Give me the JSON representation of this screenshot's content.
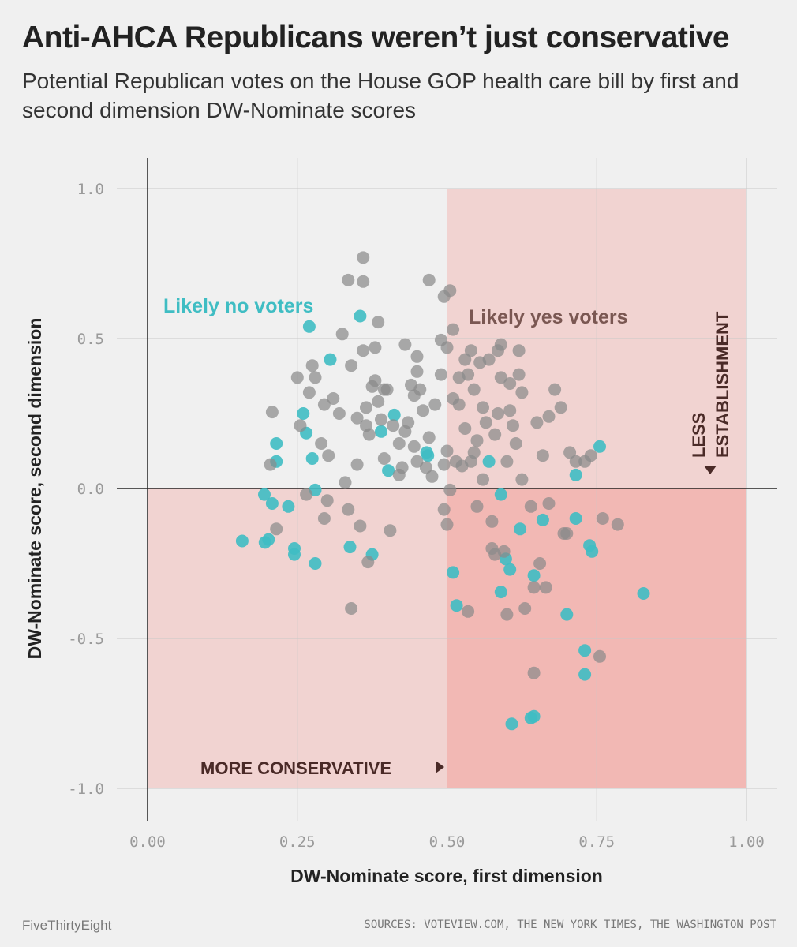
{
  "header": {
    "title": "Anti-AHCA Republicans weren’t just conservative",
    "subtitle": "Potential Republican votes on the House GOP health care bill by first and second dimension DW-Nominate scores"
  },
  "footer": {
    "brand": "FiveThirtyEight",
    "sources": "SOURCES: VOTEVIEW.COM, THE NEW YORK TIMES, THE WASHINGTON POST"
  },
  "chart_data": {
    "type": "scatter",
    "title": "Anti-AHCA Republicans weren’t just conservative",
    "xlabel": "DW-Nominate score, first dimension",
    "ylabel": "DW-Nominate score, second dimension",
    "xlim": [
      0,
      1
    ],
    "ylim": [
      -1,
      1
    ],
    "x_ticks": [
      "0.00",
      "0.25",
      "0.50",
      "0.75",
      "1.00"
    ],
    "y_ticks": [
      "1.0",
      "0.5",
      "0.0",
      "-0.5",
      "-1.0"
    ],
    "grid": true,
    "colors": {
      "no": "#3fbdc3",
      "yes": "#8a8a8a",
      "shade_light": "#f1d3d1",
      "shade_dark": "#f2b8b4",
      "annotation": "#4a2a27",
      "yes_label": "#7a5752"
    },
    "annotations": {
      "no_label": "Likely no voters",
      "yes_label": "Likely yes voters",
      "x_direction": "MORE CONSERVATIVE",
      "y_direction_line1": "LESS",
      "y_direction_line2": "ESTABLISHMENT"
    },
    "series": [
      {
        "name": "Likely no voters",
        "points": [
          [
            0.158,
            -0.175
          ],
          [
            0.195,
            -0.02
          ],
          [
            0.196,
            -0.18
          ],
          [
            0.202,
            -0.17
          ],
          [
            0.208,
            -0.05
          ],
          [
            0.215,
            0.15
          ],
          [
            0.215,
            0.09
          ],
          [
            0.235,
            -0.06
          ],
          [
            0.245,
            -0.2
          ],
          [
            0.245,
            -0.22
          ],
          [
            0.26,
            0.25
          ],
          [
            0.265,
            0.185
          ],
          [
            0.27,
            0.54
          ],
          [
            0.275,
            0.1
          ],
          [
            0.28,
            -0.25
          ],
          [
            0.28,
            -0.005
          ],
          [
            0.305,
            0.43
          ],
          [
            0.338,
            -0.195
          ],
          [
            0.355,
            0.575
          ],
          [
            0.375,
            -0.22
          ],
          [
            0.39,
            0.19
          ],
          [
            0.402,
            0.06
          ],
          [
            0.412,
            0.245
          ],
          [
            0.466,
            0.12
          ],
          [
            0.468,
            0.11
          ],
          [
            0.51,
            -0.28
          ],
          [
            0.516,
            -0.39
          ],
          [
            0.57,
            0.09
          ],
          [
            0.59,
            -0.02
          ],
          [
            0.59,
            -0.345
          ],
          [
            0.598,
            -0.235
          ],
          [
            0.605,
            -0.27
          ],
          [
            0.608,
            -0.785
          ],
          [
            0.622,
            -0.135
          ],
          [
            0.64,
            -0.765
          ],
          [
            0.645,
            -0.29
          ],
          [
            0.645,
            -0.76
          ],
          [
            0.66,
            -0.105
          ],
          [
            0.7,
            -0.42
          ],
          [
            0.715,
            0.045
          ],
          [
            0.715,
            -0.1
          ],
          [
            0.73,
            -0.62
          ],
          [
            0.73,
            -0.54
          ],
          [
            0.738,
            -0.19
          ],
          [
            0.742,
            -0.21
          ],
          [
            0.755,
            0.14
          ],
          [
            0.828,
            -0.35
          ]
        ]
      },
      {
        "name": "Likely yes voters",
        "points": [
          [
            0.205,
            0.08
          ],
          [
            0.208,
            0.255
          ],
          [
            0.215,
            -0.135
          ],
          [
            0.25,
            0.37
          ],
          [
            0.255,
            0.21
          ],
          [
            0.265,
            -0.02
          ],
          [
            0.27,
            0.32
          ],
          [
            0.275,
            0.41
          ],
          [
            0.28,
            0.37
          ],
          [
            0.29,
            0.15
          ],
          [
            0.295,
            -0.1
          ],
          [
            0.295,
            0.28
          ],
          [
            0.3,
            -0.04
          ],
          [
            0.302,
            0.11
          ],
          [
            0.31,
            0.3
          ],
          [
            0.32,
            0.25
          ],
          [
            0.325,
            0.515
          ],
          [
            0.33,
            0.02
          ],
          [
            0.335,
            0.695
          ],
          [
            0.335,
            -0.07
          ],
          [
            0.34,
            -0.4
          ],
          [
            0.34,
            0.41
          ],
          [
            0.35,
            0.08
          ],
          [
            0.35,
            0.235
          ],
          [
            0.355,
            -0.125
          ],
          [
            0.36,
            0.77
          ],
          [
            0.36,
            0.46
          ],
          [
            0.36,
            0.69
          ],
          [
            0.365,
            0.21
          ],
          [
            0.365,
            0.27
          ],
          [
            0.368,
            -0.245
          ],
          [
            0.37,
            0.18
          ],
          [
            0.375,
            0.34
          ],
          [
            0.38,
            0.47
          ],
          [
            0.38,
            0.36
          ],
          [
            0.385,
            0.555
          ],
          [
            0.385,
            0.29
          ],
          [
            0.39,
            0.23
          ],
          [
            0.395,
            0.1
          ],
          [
            0.395,
            0.33
          ],
          [
            0.4,
            0.33
          ],
          [
            0.405,
            -0.14
          ],
          [
            0.41,
            0.21
          ],
          [
            0.42,
            0.045
          ],
          [
            0.42,
            0.15
          ],
          [
            0.425,
            0.07
          ],
          [
            0.43,
            0.19
          ],
          [
            0.43,
            0.48
          ],
          [
            0.435,
            0.22
          ],
          [
            0.44,
            0.345
          ],
          [
            0.445,
            0.14
          ],
          [
            0.445,
            0.31
          ],
          [
            0.45,
            0.44
          ],
          [
            0.45,
            0.39
          ],
          [
            0.45,
            0.09
          ],
          [
            0.455,
            0.33
          ],
          [
            0.46,
            0.26
          ],
          [
            0.465,
            0.07
          ],
          [
            0.47,
            0.695
          ],
          [
            0.47,
            0.17
          ],
          [
            0.475,
            0.04
          ],
          [
            0.48,
            0.28
          ],
          [
            0.49,
            0.38
          ],
          [
            0.49,
            0.495
          ],
          [
            0.495,
            0.08
          ],
          [
            0.495,
            -0.07
          ],
          [
            0.495,
            0.64
          ],
          [
            0.5,
            0.125
          ],
          [
            0.5,
            -0.12
          ],
          [
            0.5,
            0.47
          ],
          [
            0.505,
            0.66
          ],
          [
            0.505,
            -0.005
          ],
          [
            0.51,
            0.3
          ],
          [
            0.51,
            0.53
          ],
          [
            0.515,
            0.09
          ],
          [
            0.52,
            0.37
          ],
          [
            0.52,
            0.28
          ],
          [
            0.525,
            0.075
          ],
          [
            0.53,
            0.43
          ],
          [
            0.53,
            0.2
          ],
          [
            0.535,
            0.38
          ],
          [
            0.535,
            -0.41
          ],
          [
            0.54,
            0.46
          ],
          [
            0.54,
            0.09
          ],
          [
            0.545,
            0.33
          ],
          [
            0.545,
            0.12
          ],
          [
            0.55,
            0.16
          ],
          [
            0.55,
            -0.06
          ],
          [
            0.555,
            0.42
          ],
          [
            0.56,
            0.27
          ],
          [
            0.56,
            0.03
          ],
          [
            0.565,
            0.22
          ],
          [
            0.57,
            0.43
          ],
          [
            0.575,
            -0.11
          ],
          [
            0.575,
            -0.2
          ],
          [
            0.58,
            -0.22
          ],
          [
            0.58,
            0.18
          ],
          [
            0.585,
            0.25
          ],
          [
            0.585,
            0.46
          ],
          [
            0.59,
            0.48
          ],
          [
            0.59,
            0.37
          ],
          [
            0.595,
            -0.21
          ],
          [
            0.6,
            -0.42
          ],
          [
            0.6,
            0.09
          ],
          [
            0.605,
            0.26
          ],
          [
            0.605,
            0.35
          ],
          [
            0.61,
            0.21
          ],
          [
            0.615,
            0.15
          ],
          [
            0.62,
            0.46
          ],
          [
            0.62,
            0.38
          ],
          [
            0.625,
            0.32
          ],
          [
            0.625,
            0.03
          ],
          [
            0.63,
            -0.4
          ],
          [
            0.64,
            -0.06
          ],
          [
            0.645,
            -0.33
          ],
          [
            0.645,
            -0.615
          ],
          [
            0.65,
            0.22
          ],
          [
            0.655,
            -0.25
          ],
          [
            0.66,
            0.11
          ],
          [
            0.665,
            -0.33
          ],
          [
            0.67,
            0.24
          ],
          [
            0.67,
            -0.05
          ],
          [
            0.68,
            0.33
          ],
          [
            0.69,
            0.27
          ],
          [
            0.695,
            -0.15
          ],
          [
            0.7,
            -0.15
          ],
          [
            0.705,
            0.12
          ],
          [
            0.715,
            0.09
          ],
          [
            0.73,
            0.09
          ],
          [
            0.74,
            0.11
          ],
          [
            0.755,
            -0.56
          ],
          [
            0.76,
            -0.1
          ],
          [
            0.785,
            -0.12
          ]
        ]
      }
    ]
  }
}
